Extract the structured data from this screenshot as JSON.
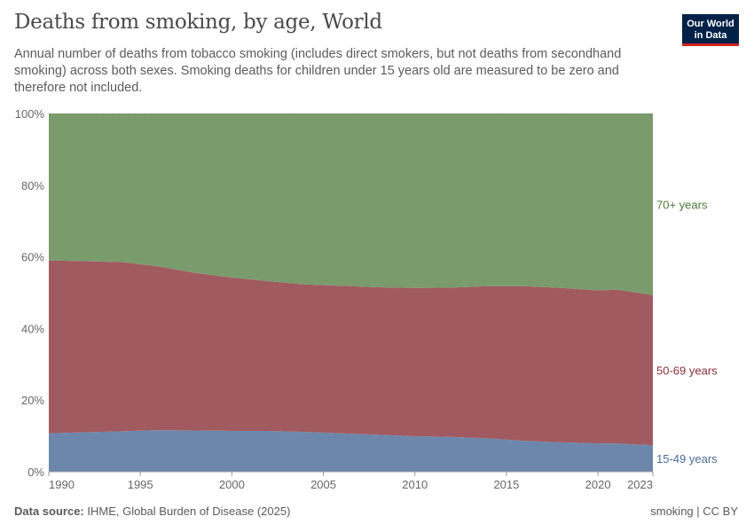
{
  "header": {
    "title": "Deaths from smoking, by age, World",
    "subtitle": "Annual number of deaths from tobacco smoking (includes direct smokers, but not deaths from secondhand smoking) across both sexes. Smoking deaths for children under 15 years old are measured to be zero and therefore not included.",
    "logo": "Our World in Data"
  },
  "footer": {
    "source_label": "Data source:",
    "source": "IHME, Global Burden of Disease (2025)",
    "license": "smoking | CC BY"
  },
  "chart_data": {
    "type": "area",
    "stacked": true,
    "relative": true,
    "title": "Deaths from smoking, by age, World",
    "ylim": [
      0,
      100
    ],
    "yticks": [
      "0%",
      "20%",
      "40%",
      "60%",
      "80%",
      "100%"
    ],
    "ytick_values": [
      0,
      20,
      40,
      60,
      80,
      100
    ],
    "xticks": [
      "1990",
      "1995",
      "2000",
      "2005",
      "2010",
      "2015",
      "2020",
      "2023"
    ],
    "xtick_values": [
      1990,
      1995,
      2000,
      2005,
      2010,
      2015,
      2020,
      2023
    ],
    "xlim": [
      1990,
      2023
    ],
    "x": [
      1990,
      1992,
      1994,
      1996,
      1998,
      2000,
      2002,
      2004,
      2006,
      2008,
      2010,
      2012,
      2014,
      2016,
      2018,
      2020,
      2021,
      2022,
      2023
    ],
    "series": [
      {
        "name": "15-49 years",
        "color": "#6d87ac",
        "values": [
          10.7,
          11.0,
          11.3,
          11.6,
          11.5,
          11.4,
          11.4,
          11.1,
          10.7,
          10.3,
          9.9,
          9.7,
          9.3,
          8.6,
          8.2,
          7.9,
          7.9,
          7.6,
          7.4
        ]
      },
      {
        "name": "50-69 years",
        "color": "#a05a60",
        "values": [
          48.3,
          47.8,
          47.2,
          45.7,
          44.0,
          42.8,
          41.8,
          41.2,
          41.2,
          41.2,
          41.4,
          41.7,
          42.5,
          43.2,
          43.1,
          42.7,
          42.9,
          42.5,
          41.9
        ]
      },
      {
        "name": "70+ years",
        "color": "#7a9b6c",
        "values": [
          41.0,
          41.2,
          41.5,
          42.7,
          44.5,
          45.8,
          46.8,
          47.7,
          48.1,
          48.5,
          48.7,
          48.6,
          48.2,
          48.2,
          48.7,
          49.4,
          49.2,
          49.9,
          50.7
        ]
      }
    ],
    "legend_placement": "right (inline labels)"
  }
}
